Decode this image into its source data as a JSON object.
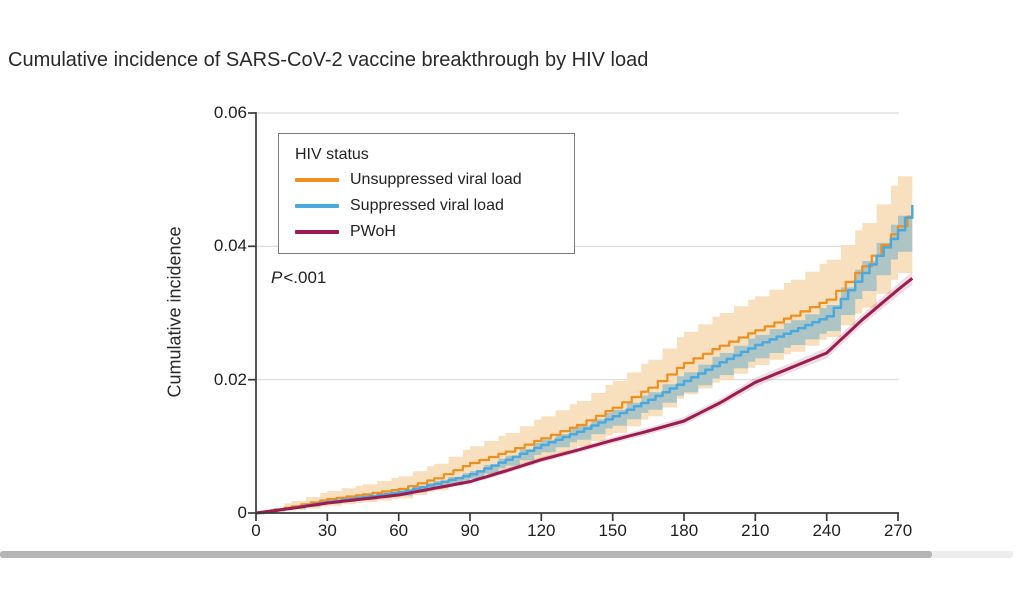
{
  "figure": {
    "title": "Cumulative incidence of SARS-CoV-2 vaccine breakthrough by HIV load"
  },
  "legend": {
    "title": "HIV status"
  },
  "chart_data": {
    "type": "line",
    "title": "Cumulative incidence of SARS-CoV-2 vaccine breakthrough by HIV load",
    "xlabel": "",
    "ylabel": "Cumulative incidence",
    "xlim": [
      0,
      270
    ],
    "ylim": [
      0,
      0.06
    ],
    "x_ticks": [
      0,
      30,
      60,
      90,
      120,
      150,
      180,
      210,
      240,
      270
    ],
    "y_ticks": [
      {
        "value": 0,
        "label": "0"
      },
      {
        "value": 0.02,
        "label": "0.02"
      },
      {
        "value": 0.04,
        "label": "0.04"
      },
      {
        "value": 0.06,
        "label": "0.06"
      }
    ],
    "grid": "horizontal",
    "legend_position": "top-left-inside",
    "legend_title": "HIV status",
    "annotation": {
      "label": "P",
      "text": "<.001"
    },
    "colors": {
      "axis": "#3a3a3a",
      "gridline": "#d9d9d9",
      "text": "#222222"
    },
    "x_days": [
      0,
      15,
      30,
      45,
      60,
      75,
      90,
      105,
      120,
      135,
      150,
      165,
      180,
      195,
      210,
      225,
      240,
      255,
      270,
      276
    ],
    "series": [
      {
        "name": "Unsuppressed viral load",
        "color": "#EE8F1F",
        "band_color": "#F8DFBD",
        "step": true,
        "line_width": 2.2,
        "values": [
          0,
          0.001,
          0.0021,
          0.0028,
          0.0036,
          0.0052,
          0.0075,
          0.0092,
          0.0112,
          0.0132,
          0.0158,
          0.0188,
          0.0225,
          0.0251,
          0.0274,
          0.0296,
          0.032,
          0.037,
          0.043,
          0.0452
        ],
        "ci_upper": [
          0,
          0.0018,
          0.0033,
          0.0043,
          0.0055,
          0.0074,
          0.01,
          0.012,
          0.0145,
          0.0168,
          0.0198,
          0.023,
          0.0272,
          0.03,
          0.0325,
          0.035,
          0.038,
          0.0435,
          0.0505,
          0.0528
        ],
        "ci_lower": [
          0,
          0.0004,
          0.0011,
          0.0016,
          0.0022,
          0.0034,
          0.0052,
          0.0066,
          0.0082,
          0.01,
          0.012,
          0.0145,
          0.0178,
          0.02,
          0.0222,
          0.0242,
          0.0264,
          0.0308,
          0.036,
          0.0378
        ]
      },
      {
        "name": "Suppressed viral load",
        "color": "#4BA9DE",
        "band_color": "rgba(70,163,204,0.42)",
        "step": true,
        "line_width": 2.5,
        "values": [
          0,
          0.0008,
          0.0017,
          0.0024,
          0.0031,
          0.0044,
          0.0058,
          0.008,
          0.0102,
          0.0122,
          0.0145,
          0.017,
          0.0198,
          0.0226,
          0.0252,
          0.0273,
          0.0295,
          0.036,
          0.0424,
          0.0462
        ],
        "ci_upper": [
          0,
          0.001,
          0.002,
          0.0027,
          0.0034,
          0.0048,
          0.0063,
          0.0086,
          0.011,
          0.0131,
          0.0155,
          0.0181,
          0.0211,
          0.024,
          0.0267,
          0.0289,
          0.0312,
          0.0378,
          0.0446,
          0.0492
        ],
        "ci_lower": [
          0,
          0.0006,
          0.0014,
          0.002,
          0.0026,
          0.0038,
          0.0051,
          0.0071,
          0.0091,
          0.011,
          0.0131,
          0.0155,
          0.0181,
          0.0207,
          0.0232,
          0.0252,
          0.0273,
          0.0333,
          0.0392,
          0.042
        ]
      },
      {
        "name": "PWoH",
        "color": "#9C1C4F",
        "band_color": "rgba(156,28,79,0.16)",
        "step": false,
        "line_width": 3,
        "values": [
          0,
          0.0007,
          0.0015,
          0.0021,
          0.0027,
          0.0037,
          0.0047,
          0.0063,
          0.008,
          0.0094,
          0.0109,
          0.0123,
          0.0138,
          0.0165,
          0.0196,
          0.0218,
          0.024,
          0.029,
          0.0335,
          0.0352
        ],
        "ci_upper": [
          0,
          0.0009,
          0.0017,
          0.0023,
          0.0029,
          0.004,
          0.005,
          0.0067,
          0.0084,
          0.0098,
          0.0114,
          0.0128,
          0.0144,
          0.0171,
          0.0203,
          0.0225,
          0.0248,
          0.0298,
          0.0344,
          0.0362
        ],
        "ci_lower": [
          0,
          0.0005,
          0.0013,
          0.0019,
          0.0025,
          0.0034,
          0.0044,
          0.0059,
          0.0076,
          0.009,
          0.0104,
          0.0118,
          0.0132,
          0.0159,
          0.0189,
          0.0211,
          0.0232,
          0.0282,
          0.0326,
          0.0342
        ]
      }
    ]
  }
}
